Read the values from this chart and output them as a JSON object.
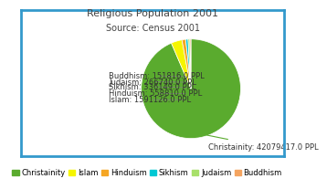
{
  "title": "Religious Population 2001",
  "subtitle": "Source: Census 2001",
  "labels": [
    "Christainity",
    "Islam",
    "Hinduism",
    "Sikhism",
    "Judaism",
    "Buddhism"
  ],
  "values": [
    42079417.0,
    1591126.0,
    558810.0,
    336149.0,
    266740.0,
    151816.0
  ],
  "colors": [
    "#5aab2e",
    "#f5f500",
    "#f5a623",
    "#00c8d4",
    "#a8e06a",
    "#f4a460"
  ],
  "annotation_labels": [
    "Christainity: 42079417.0 PPL",
    "Islam: 1591126.0 PPL",
    "Hinduism: 558810.0 PPL",
    "Sikhism: 336149.0 PPL",
    "Judaism: 266740.0 PPL",
    "Buddhism: 151816.0 PPL"
  ],
  "border_color": "#3399cc",
  "background_color": "#ffffff",
  "title_fontsize": 8,
  "legend_fontsize": 6,
  "annot_fontsize": 6
}
